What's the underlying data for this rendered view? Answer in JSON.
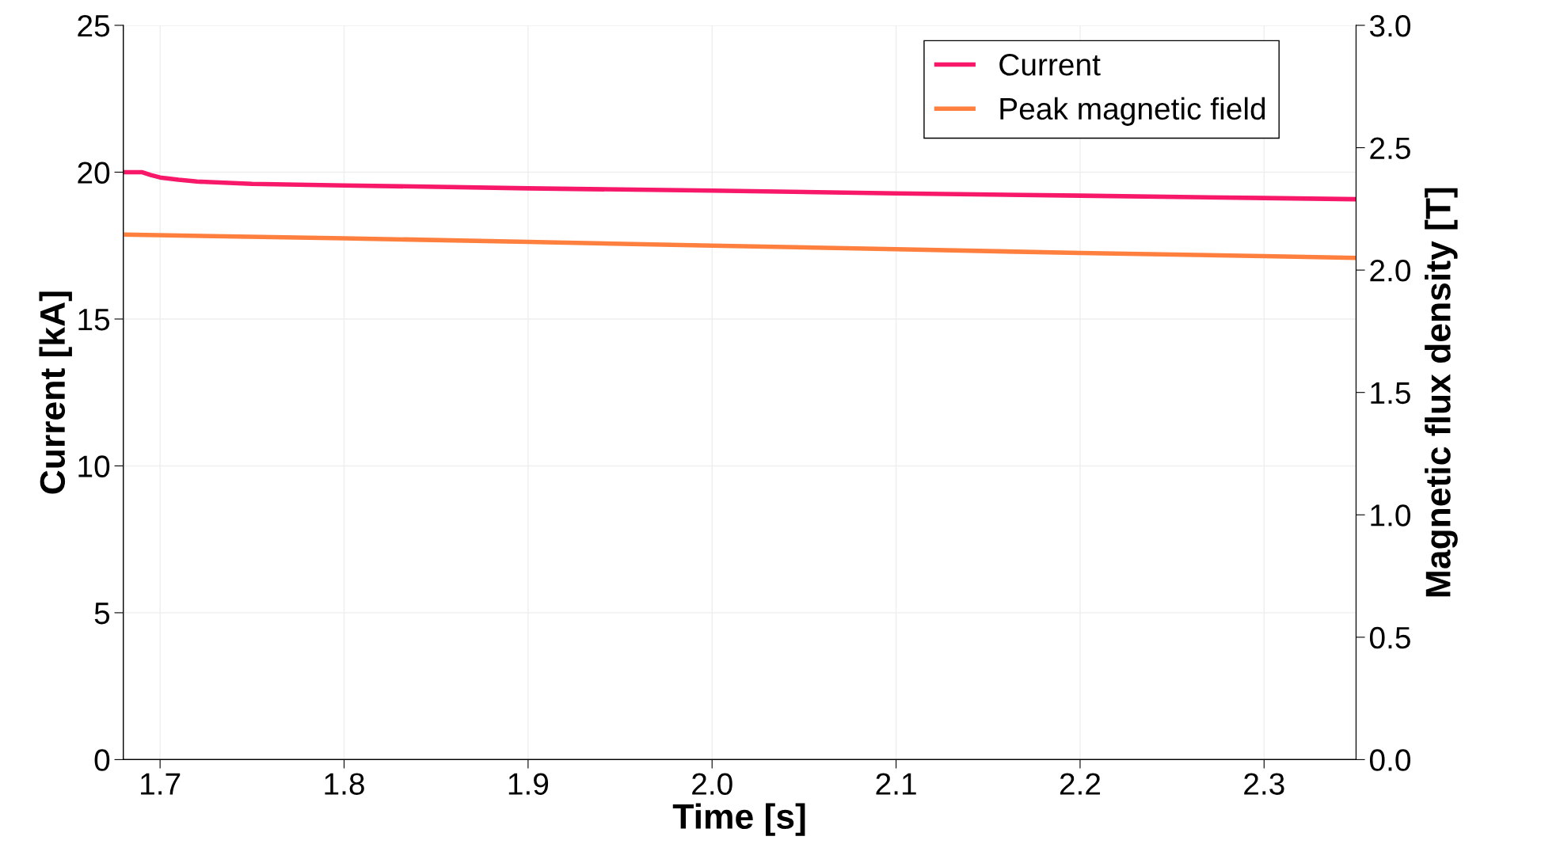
{
  "chart_data": {
    "type": "line",
    "xlabel": "Time [s]",
    "ylabel": "Current [kA]",
    "y2label": "Magnetic flux density [T]",
    "xlim": [
      1.68,
      2.35
    ],
    "xticks": [
      {
        "value": 1.7,
        "label": "1.7"
      },
      {
        "value": 1.8,
        "label": "1.8"
      },
      {
        "value": 1.9,
        "label": "1.9"
      },
      {
        "value": 2.0,
        "label": "2.0"
      },
      {
        "value": 2.1,
        "label": "2.1"
      },
      {
        "value": 2.2,
        "label": "2.2"
      },
      {
        "value": 2.3,
        "label": "2.3"
      }
    ],
    "ylim": [
      0,
      25
    ],
    "yticks": [
      0,
      5,
      10,
      15,
      20,
      25
    ],
    "y2lim": [
      0,
      3.0
    ],
    "y2ticks": [
      {
        "value": 0,
        "label": "0.0"
      },
      {
        "value": 0.5,
        "label": "0.5"
      },
      {
        "value": 1.0,
        "label": "1.0"
      },
      {
        "value": 1.5,
        "label": "1.5"
      },
      {
        "value": 2.0,
        "label": "2.0"
      },
      {
        "value": 2.5,
        "label": "2.5"
      },
      {
        "value": 3.0,
        "label": "3.0"
      }
    ],
    "grid": true,
    "legend": "top right",
    "marker": "none",
    "line_style": "solid",
    "series": [
      {
        "name": "Current",
        "color": "#f7186a",
        "x": [
          1.68,
          1.69,
          1.695,
          1.7,
          1.71,
          1.72,
          1.75,
          1.8,
          1.9,
          2.0,
          2.1,
          2.2,
          2.3,
          2.35
        ],
        "values": [
          20.0,
          20.0,
          19.9,
          19.82,
          19.74,
          19.68,
          19.6,
          19.55,
          19.45,
          19.37,
          19.28,
          19.2,
          19.12,
          19.08
        ]
      },
      {
        "name": "Peak magnetic field",
        "color": "#ff7f3f",
        "axis": "y2",
        "x": [
          1.68,
          1.8,
          1.9,
          2.0,
          2.1,
          2.2,
          2.3,
          2.35
        ],
        "values": [
          2.145,
          2.13,
          2.115,
          2.1,
          2.085,
          2.07,
          2.057,
          2.05
        ]
      }
    ]
  }
}
